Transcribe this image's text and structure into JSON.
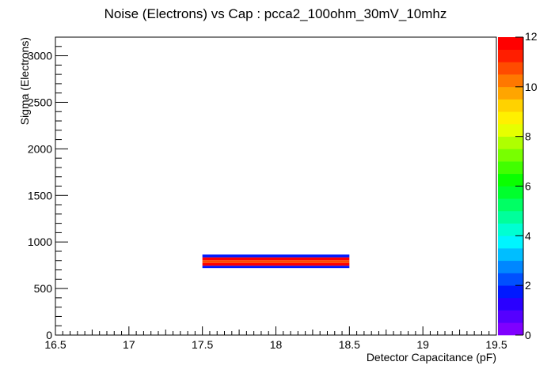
{
  "chart_data": {
    "type": "heatmap",
    "title": "Noise (Electrons) vs Cap : pcca2_100ohm_30mV_10mhz",
    "xlabel": "Detector Capacitance (pF)",
    "ylabel": "Sigma (Electrons)",
    "xlim": [
      16.5,
      19.5
    ],
    "ylim": [
      0,
      3200
    ],
    "x_ticks": [
      16.5,
      17,
      17.5,
      18,
      18.5,
      19,
      19.5
    ],
    "x_tick_labels": [
      "16.5",
      "17",
      "17.5",
      "18",
      "18.5",
      "19",
      "19.5"
    ],
    "y_ticks": [
      0,
      500,
      1000,
      1500,
      2000,
      2500,
      3000
    ],
    "y_tick_labels": [
      "0",
      "500",
      "1000",
      "1500",
      "2000",
      "2500",
      "3000"
    ],
    "z_range": [
      0,
      12
    ],
    "z_ticks": [
      0,
      2,
      4,
      6,
      8,
      10,
      12
    ],
    "z_tick_labels": [
      "0",
      "2",
      "4",
      "6",
      "8",
      "10",
      "12"
    ],
    "palette": [
      "#7f00ff",
      "#5500ff",
      "#2a00ff",
      "#0019ff",
      "#0050ff",
      "#0087ff",
      "#00beff",
      "#00f5ff",
      "#00ffd2",
      "#00ff9b",
      "#00ff64",
      "#00ff2d",
      "#0aff00",
      "#41ff00",
      "#78ff00",
      "#afff00",
      "#e6ff00",
      "#fff000",
      "#ffd200",
      "#ffa500",
      "#ff7800",
      "#ff4b00",
      "#ff1e00",
      "#ff0000"
    ],
    "cells": [
      {
        "x0": 17.5,
        "x1": 18.5,
        "y0": 720,
        "y1": 745,
        "z": 1.6
      },
      {
        "x0": 17.5,
        "x1": 18.5,
        "y0": 745,
        "y1": 775,
        "z": 11.5
      },
      {
        "x0": 17.5,
        "x1": 18.5,
        "y0": 775,
        "y1": 805,
        "z": 10.5
      },
      {
        "x0": 17.5,
        "x1": 18.5,
        "y0": 805,
        "y1": 835,
        "z": 11.5
      },
      {
        "x0": 17.5,
        "x1": 18.5,
        "y0": 835,
        "y1": 865,
        "z": 1.6
      }
    ]
  }
}
